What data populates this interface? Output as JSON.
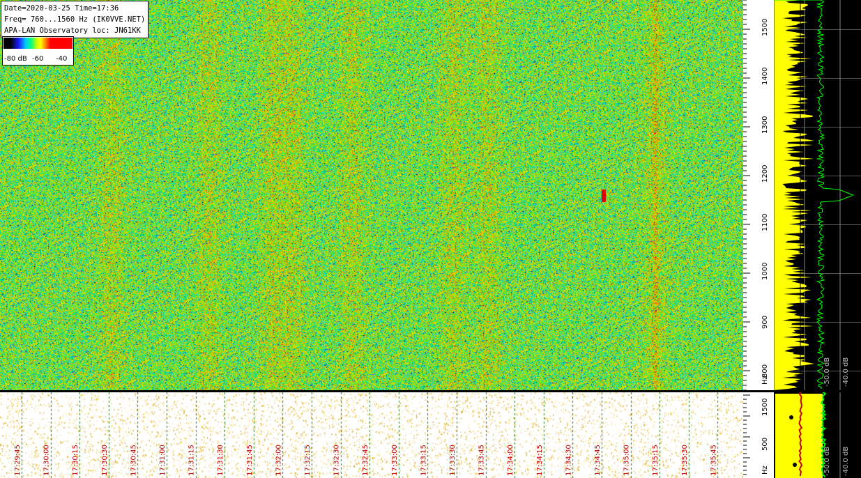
{
  "info": {
    "line1": "Date=2020-03-25 Time=17:36",
    "line2": "Freq= 760...1560 Hz (IK0VVE.NET)",
    "line3": "APA-LAN Observatory loc: JN61KK"
  },
  "legend": {
    "low": "-80 dB",
    "mid": "-60",
    "high": "-40"
  },
  "colors": {
    "low": "#000000",
    "blue": "#1a1aff",
    "cyan": "#00c8ff",
    "green": "#00ff80",
    "yellow": "#ffff00",
    "red": "#ff0000",
    "spectrum": "#ffff00",
    "peak": "#00ff00"
  },
  "chart_data": {
    "type": "heatmap",
    "title": "",
    "xlabel": "",
    "ylabel": "Hz",
    "x_ticks": [
      "17:29:45",
      "17:30:00",
      "17:30:15",
      "17:30:30",
      "17:30:45",
      "17:31:00",
      "17:31:15",
      "17:31:30",
      "17:31:45",
      "17:32:00",
      "17:32:15",
      "17:32:30",
      "17:32:45",
      "17:33:00",
      "17:33:15",
      "17:33:30",
      "17:33:45",
      "17:34:00",
      "17:34:15",
      "17:34:30",
      "17:34:45",
      "17:35:00",
      "17:35:15",
      "17:35:30",
      "17:35:45"
    ],
    "y_ticks": [
      800,
      900,
      1000,
      1100,
      1200,
      1300,
      1400,
      1500
    ],
    "ylim": [
      760,
      1560
    ],
    "unit_label": "Hz",
    "colorbar_db": [
      -80,
      -60,
      -40
    ],
    "strip_ticks": [
      500,
      1500
    ],
    "spectrum_ticks": [
      "-50.0 dB",
      "-40.0 dB"
    ]
  }
}
